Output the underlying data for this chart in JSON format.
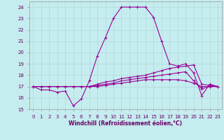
{
  "xlabel": "Windchill (Refroidissement éolien,°C)",
  "background_color": "#c5ecee",
  "grid_color": "#b0d8da",
  "line_color": "#990099",
  "xlim": [
    -0.5,
    23.5
  ],
  "ylim": [
    15,
    24.5
  ],
  "yticks": [
    15,
    16,
    17,
    18,
    19,
    20,
    21,
    22,
    23,
    24
  ],
  "xticks": [
    0,
    1,
    2,
    3,
    4,
    5,
    6,
    7,
    8,
    9,
    10,
    11,
    12,
    13,
    14,
    15,
    16,
    17,
    18,
    19,
    20,
    21,
    22,
    23
  ],
  "curves": [
    [
      17.0,
      16.7,
      16.7,
      16.5,
      16.6,
      15.3,
      15.9,
      17.5,
      19.7,
      21.3,
      23.0,
      24.0,
      24.0,
      24.0,
      24.0,
      23.1,
      21.0,
      19.0,
      18.8,
      19.0,
      18.2,
      16.2,
      17.2,
      17.0
    ],
    [
      17.0,
      17.0,
      17.0,
      17.0,
      17.0,
      17.0,
      17.0,
      17.0,
      17.2,
      17.4,
      17.5,
      17.7,
      17.8,
      17.9,
      18.0,
      18.2,
      18.4,
      18.6,
      18.7,
      18.8,
      18.9,
      17.2,
      17.1,
      17.0
    ],
    [
      17.0,
      17.0,
      17.0,
      17.0,
      17.0,
      17.0,
      17.0,
      17.0,
      17.1,
      17.2,
      17.3,
      17.5,
      17.6,
      17.7,
      17.8,
      17.9,
      18.0,
      18.1,
      18.2,
      18.3,
      17.5,
      16.8,
      17.0,
      17.0
    ],
    [
      17.0,
      17.0,
      17.0,
      17.0,
      17.0,
      17.0,
      17.0,
      17.0,
      17.0,
      17.1,
      17.2,
      17.3,
      17.4,
      17.5,
      17.6,
      17.6,
      17.6,
      17.6,
      17.6,
      17.5,
      17.3,
      17.0,
      17.0,
      17.0
    ]
  ],
  "marker": "+",
  "markersize": 3,
  "linewidth": 0.8,
  "tick_fontsize": 5,
  "xlabel_fontsize": 5.5
}
